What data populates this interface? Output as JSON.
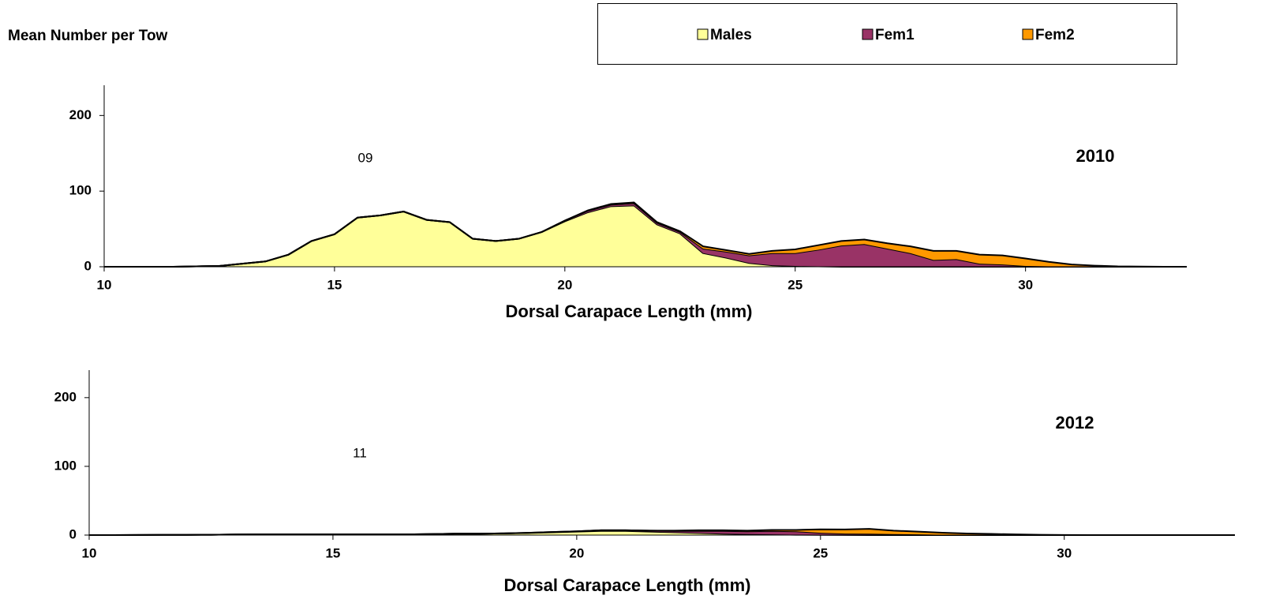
{
  "title": "Mean Number per Tow",
  "chart_data": [
    {
      "type": "area",
      "annotation": "09",
      "label": "2010",
      "xlabel": "Dorsal Carapace Length (mm)",
      "xlim": [
        10,
        33.5
      ],
      "ylim": [
        0,
        240
      ],
      "xticks": [
        10,
        15,
        20,
        25,
        30
      ],
      "yticks": [
        0,
        100,
        200
      ],
      "x": [
        10,
        10.5,
        11,
        11.5,
        12,
        12.5,
        13,
        13.5,
        14,
        14.5,
        15,
        15.5,
        16,
        16.5,
        17,
        17.5,
        18,
        18.5,
        19,
        19.5,
        20,
        20.5,
        21,
        21.5,
        22,
        22.5,
        23,
        23.5,
        24,
        24.5,
        25,
        25.5,
        26,
        26.5,
        27,
        27.5,
        28,
        28.5,
        29,
        29.5,
        30,
        30.5,
        31,
        31.5,
        32,
        32.5,
        33,
        33.5
      ],
      "series": [
        {
          "name": "Males",
          "color": "#ffff99",
          "values": [
            0,
            0,
            0,
            0,
            0.5,
            1,
            4,
            7,
            16,
            34,
            43,
            65,
            68,
            73,
            62,
            59,
            37,
            34,
            37,
            46,
            60,
            72,
            80,
            81,
            56,
            44,
            18,
            12,
            5,
            2,
            1,
            0.5,
            0,
            0,
            0,
            0,
            0,
            0,
            0,
            0,
            0,
            0,
            0,
            0,
            0,
            0,
            0,
            0
          ]
        },
        {
          "name": "Fem1",
          "color": "#993366",
          "values": [
            0,
            0,
            0,
            0,
            0,
            0,
            0,
            0,
            0,
            0,
            0,
            0,
            0,
            0,
            0,
            0,
            0,
            0,
            0,
            0,
            1,
            2,
            2,
            3,
            2,
            2,
            6,
            8,
            10,
            16,
            17,
            22,
            28,
            30,
            24,
            18,
            9,
            10,
            4,
            3,
            1,
            0.5,
            0,
            0,
            0,
            0,
            0,
            0
          ]
        },
        {
          "name": "Fem2",
          "color": "#ff9900",
          "values": [
            0,
            0,
            0,
            0,
            0,
            0,
            0,
            0,
            0,
            0,
            0,
            0,
            0,
            0,
            0,
            0,
            0,
            0,
            0,
            0,
            0,
            0.5,
            1,
            1,
            1,
            1,
            3,
            2,
            2,
            3,
            5,
            6,
            6,
            6,
            7,
            9,
            12,
            11,
            12,
            12,
            10,
            6,
            3,
            1.5,
            0.5,
            0.3,
            0,
            0
          ]
        }
      ]
    },
    {
      "type": "area",
      "annotation": "11",
      "label": "2012",
      "xlabel": "Dorsal Carapace Length (mm)",
      "xlim": [
        10,
        33.5
      ],
      "ylim": [
        0,
        240
      ],
      "xticks": [
        10,
        15,
        20,
        25,
        30
      ],
      "yticks": [
        0,
        100,
        200
      ],
      "x": [
        10,
        10.5,
        11,
        11.5,
        12,
        12.5,
        13,
        13.5,
        14,
        14.5,
        15,
        15.5,
        16,
        16.5,
        17,
        17.5,
        18,
        18.5,
        19,
        19.5,
        20,
        20.5,
        21,
        21.5,
        22,
        22.5,
        23,
        23.5,
        24,
        24.5,
        25,
        25.5,
        26,
        26.5,
        27,
        27.5,
        28,
        28.5,
        29,
        29.5,
        30,
        30.5,
        31,
        31.5,
        32,
        32.5,
        33,
        33.5
      ],
      "series": [
        {
          "name": "Males",
          "color": "#ffff99",
          "values": [
            0,
            0,
            0.2,
            0.3,
            0.3,
            0.5,
            0.8,
            1,
            1,
            1,
            1,
            1,
            1,
            1,
            1.5,
            2,
            2,
            2.5,
            3,
            4,
            5,
            6,
            6,
            5,
            4,
            3,
            2,
            1.5,
            1,
            0.5,
            0.3,
            0.2,
            0,
            0,
            0,
            0,
            0,
            0,
            0,
            0,
            0,
            0,
            0,
            0,
            0,
            0,
            0,
            0
          ]
        },
        {
          "name": "Fem1",
          "color": "#993366",
          "values": [
            0,
            0,
            0,
            0,
            0,
            0,
            0,
            0,
            0,
            0,
            0,
            0,
            0,
            0,
            0,
            0,
            0,
            0,
            0.3,
            0.5,
            0.5,
            1,
            1,
            1.5,
            2,
            3,
            4,
            4,
            5,
            5,
            3,
            2,
            2,
            1.5,
            1,
            0.5,
            0.3,
            0.2,
            0,
            0,
            0,
            0,
            0,
            0,
            0,
            0,
            0,
            0
          ]
        },
        {
          "name": "Fem2",
          "color": "#ff9900",
          "values": [
            0,
            0,
            0,
            0,
            0,
            0,
            0,
            0,
            0,
            0,
            0,
            0,
            0,
            0,
            0,
            0,
            0,
            0,
            0,
            0,
            0,
            0,
            0,
            0,
            0.5,
            1,
            1,
            1,
            1.5,
            2,
            5,
            6,
            7,
            5,
            4,
            3,
            2,
            1.5,
            1,
            0.5,
            0.2,
            0,
            0,
            0,
            0,
            0,
            0,
            0
          ]
        }
      ]
    }
  ]
}
